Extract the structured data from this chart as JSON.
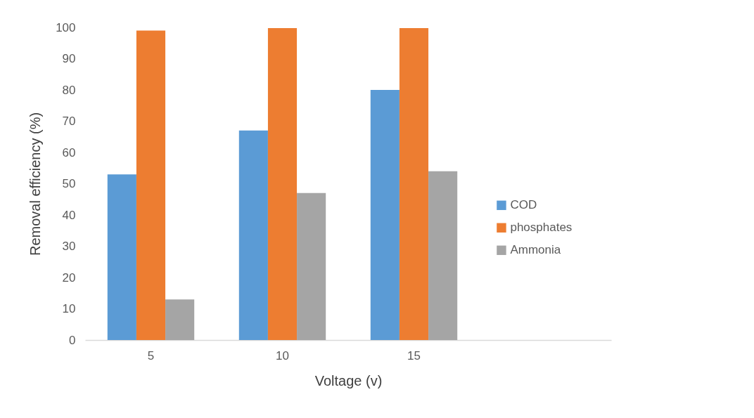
{
  "chart_data": {
    "type": "bar",
    "xlabel": "Voltage (v)",
    "ylabel": "Removal efficiency (%)",
    "categories": [
      "5",
      "10",
      "15",
      null
    ],
    "series": [
      {
        "name": "COD",
        "color": "#5b9bd5",
        "values": [
          53,
          67,
          80,
          null
        ]
      },
      {
        "name": "phosphates",
        "color": "#ed7d31",
        "values": [
          99,
          99.8,
          99.8,
          null
        ]
      },
      {
        "name": "Ammonia",
        "color": "#a5a5a5",
        "values": [
          13,
          47,
          54,
          null
        ]
      }
    ],
    "ylim": [
      0,
      100
    ],
    "yticks": [
      0,
      10,
      20,
      30,
      40,
      50,
      60,
      70,
      80,
      90,
      100
    ],
    "grid": false,
    "legend": "right"
  }
}
